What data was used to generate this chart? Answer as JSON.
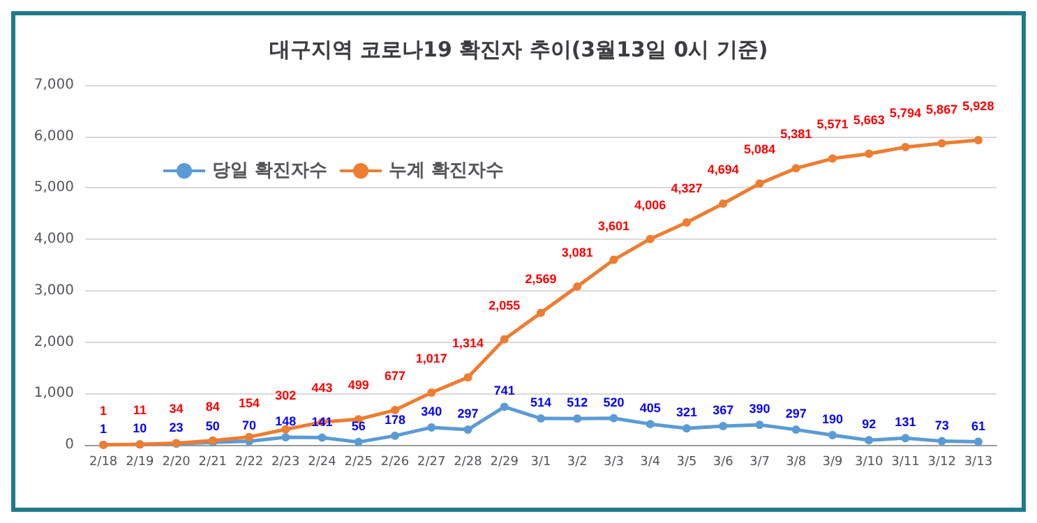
{
  "chart_data": {
    "type": "line",
    "title": "대구지역 코로나19 확진자 추이(3월13일 0시 기준)",
    "categories": [
      "2/18",
      "2/19",
      "2/20",
      "2/21",
      "2/22",
      "2/23",
      "2/24",
      "2/25",
      "2/26",
      "2/27",
      "2/28",
      "2/29",
      "3/1",
      "3/2",
      "3/3",
      "3/4",
      "3/5",
      "3/6",
      "3/7",
      "3/8",
      "3/9",
      "3/10",
      "3/11",
      "3/12",
      "3/13"
    ],
    "series": [
      {
        "name": "당일 확진자수",
        "color": "#5b9bd5",
        "values": [
          1,
          10,
          23,
          50,
          70,
          148,
          141,
          56,
          178,
          340,
          297,
          741,
          514,
          512,
          520,
          405,
          321,
          367,
          390,
          297,
          190,
          92,
          131,
          73,
          61
        ],
        "value_labels": [
          "1",
          "10",
          "23",
          "50",
          "70",
          "148",
          "141",
          "56",
          "178",
          "340",
          "297",
          "741",
          "514",
          "512",
          "520",
          "405",
          "321",
          "367",
          "390",
          "297",
          "190",
          "92",
          "131",
          "73",
          "61"
        ]
      },
      {
        "name": "누계 확진자수",
        "color": "#ed7d31",
        "values": [
          1,
          11,
          34,
          84,
          154,
          302,
          443,
          499,
          677,
          1017,
          1314,
          2055,
          2569,
          3081,
          3601,
          4006,
          4327,
          4694,
          5084,
          5381,
          5571,
          5663,
          5794,
          5867,
          5928
        ],
        "value_labels": [
          "1",
          "11",
          "34",
          "84",
          "154",
          "302",
          "443",
          "499",
          "677",
          "1,017",
          "1,314",
          "2,055",
          "2,569",
          "3,081",
          "3,601",
          "4,006",
          "4,327",
          "4,694",
          "5,084",
          "5,381",
          "5,571",
          "5,663",
          "5,794",
          "5,867",
          "5,928"
        ]
      }
    ],
    "ylim": [
      0,
      7000
    ],
    "yticks": [
      0,
      {
        "value": 1000,
        "label": "1,000"
      },
      {
        "value": 2000,
        "label": "2,000"
      },
      {
        "value": 3000,
        "label": "3,000"
      },
      {
        "value": 4000,
        "label": "4,000"
      },
      {
        "value": 5000,
        "label": "5,000"
      },
      {
        "value": 6000,
        "label": "6,000"
      },
      {
        "value": 7000,
        "label": "7,000"
      }
    ],
    "grid": "y",
    "legend": "top left",
    "marker": "circle"
  }
}
